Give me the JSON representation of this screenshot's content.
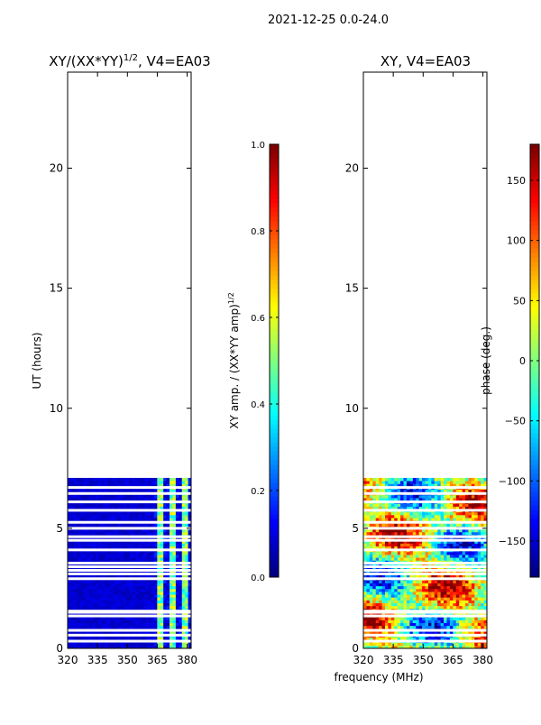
{
  "suptitle": "2021-12-25 0.0-24.0",
  "shared_xlabel": "frequency (MHz)",
  "chart_data": [
    {
      "type": "heatmap",
      "title": "XY/(XX*YY)",
      "title_sup": "1/2",
      "title_suffix": ", V4=EA03",
      "xlabel": "",
      "ylabel": "UT (hours)",
      "xlim": [
        320,
        382
      ],
      "ylim": [
        0,
        24
      ],
      "xticks": [
        320,
        335,
        350,
        365,
        380
      ],
      "yticks": [
        0,
        5,
        10,
        15,
        20
      ],
      "data_time_range_hours": [
        0,
        7.1
      ],
      "gap_rows_hours": [
        0.3,
        0.55,
        0.75,
        1.35,
        1.5,
        1.55,
        2.9,
        3.1,
        3.25,
        3.4,
        3.55,
        4.1,
        4.5,
        4.65,
        5.0,
        5.25,
        5.75,
        6.1,
        6.45,
        6.7
      ],
      "bright_freq_band_mhz": [
        363,
        382
      ],
      "colorbar": {
        "label": "XY amp. / (XX*YY amp)",
        "label_sup": "1/2",
        "range": [
          0.0,
          1.0
        ],
        "ticks": [
          "0.0",
          "0.2",
          "0.4",
          "0.6",
          "0.8",
          "1.0"
        ],
        "colormap": "jet"
      }
    },
    {
      "type": "heatmap",
      "title": "XY, V4=EA03",
      "xlabel": "frequency (MHz)",
      "ylabel": "",
      "xlim": [
        320,
        382
      ],
      "ylim": [
        0,
        24
      ],
      "xticks": [
        320,
        335,
        350,
        365,
        380
      ],
      "yticks": [
        0,
        5,
        10,
        15,
        20
      ],
      "data_time_range_hours": [
        0,
        7.1
      ],
      "gap_rows_hours": [
        0.3,
        0.55,
        0.75,
        1.35,
        1.5,
        1.55,
        2.9,
        3.1,
        3.25,
        3.4,
        3.55,
        4.1,
        4.5,
        4.65,
        5.0,
        5.25,
        5.75,
        6.1,
        6.45,
        6.7
      ],
      "colorbar": {
        "label": "phase (deg.)",
        "range": [
          -180,
          180
        ],
        "ticks": [
          "−150",
          "−100",
          "−50",
          "0",
          "50",
          "100",
          "150"
        ],
        "tick_values": [
          -150,
          -100,
          -50,
          0,
          50,
          100,
          150
        ],
        "colormap": "jet"
      }
    }
  ]
}
